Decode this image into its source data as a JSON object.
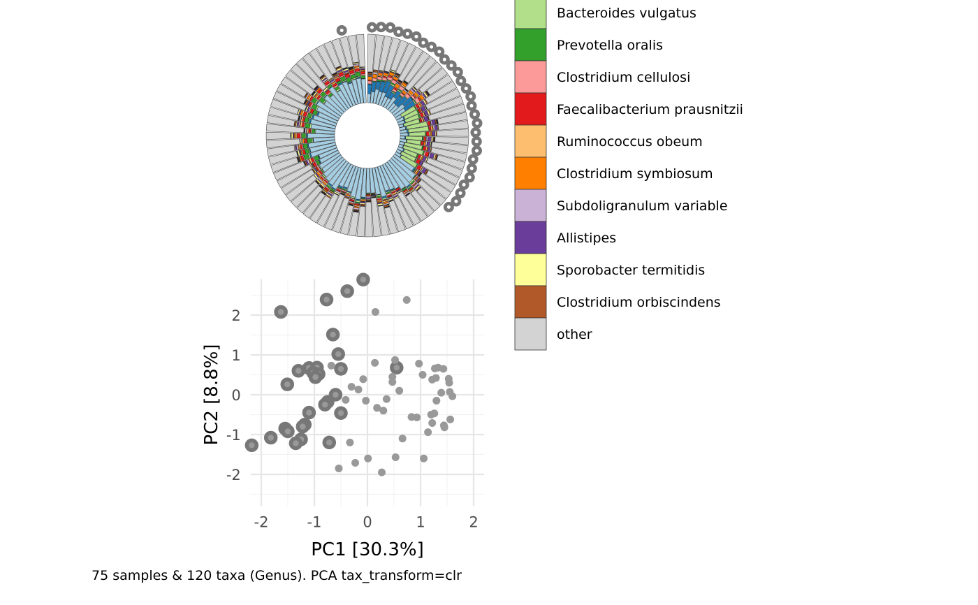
{
  "caption": "75 samples & 120 taxa (Genus). PCA tax_transform=clr",
  "legend": {
    "items": [
      {
        "label": "Bacteroides vulgatus",
        "color": "#b2df8a"
      },
      {
        "label": "Prevotella oralis",
        "color": "#33a02c"
      },
      {
        "label": "Clostridium cellulosi",
        "color": "#fb9a99"
      },
      {
        "label": "Faecalibacterium prausnitzii",
        "color": "#e31a1c"
      },
      {
        "label": "Ruminococcus obeum",
        "color": "#fdbf6f"
      },
      {
        "label": "Clostridium symbiosum",
        "color": "#ff7f00"
      },
      {
        "label": "Subdoligranulum variable",
        "color": "#cab2d6"
      },
      {
        "label": "Allistipes",
        "color": "#6a3d9a"
      },
      {
        "label": "Sporobacter termitidis",
        "color": "#ffff99"
      },
      {
        "label": "Clostridium orbiscindens",
        "color": "#b15928"
      },
      {
        "label": "other",
        "color": "#d3d3d3"
      }
    ],
    "hidden_colors": [
      "#1f78b4",
      "#a6cee3",
      "#222222"
    ]
  },
  "chart_data": [
    {
      "type": "scatter",
      "xlabel": "PC1 [30.3%]",
      "ylabel": "PC2 [8.8%]",
      "xlim": [
        -2.2,
        2.2
      ],
      "ylim": [
        -2.8,
        2.9
      ],
      "xticks": [
        -2,
        -1,
        0,
        1,
        2
      ],
      "yticks": [
        -2,
        -1,
        0,
        1,
        2
      ],
      "grid": true,
      "point_color": "#999999",
      "highlight_color": "#777777",
      "points": [
        {
          "x": -0.08,
          "y": 2.89,
          "h": true
        },
        {
          "x": -0.38,
          "y": 2.6,
          "h": true
        },
        {
          "x": -0.77,
          "y": 2.39,
          "h": true
        },
        {
          "x": -1.63,
          "y": 2.08,
          "h": true
        },
        {
          "x": -0.65,
          "y": 1.51,
          "h": true
        },
        {
          "x": -0.55,
          "y": 1.02,
          "h": true
        },
        {
          "x": -0.5,
          "y": 0.65,
          "h": true
        },
        {
          "x": -1.3,
          "y": 0.6,
          "h": true
        },
        {
          "x": -1.1,
          "y": 0.67,
          "h": true
        },
        {
          "x": -0.95,
          "y": 0.68,
          "h": true
        },
        {
          "x": -1.02,
          "y": 0.55,
          "h": true
        },
        {
          "x": -0.92,
          "y": 0.52,
          "h": true
        },
        {
          "x": -0.98,
          "y": 0.44,
          "h": true
        },
        {
          "x": -1.51,
          "y": 0.26,
          "h": true
        },
        {
          "x": -0.6,
          "y": 0.0,
          "h": true
        },
        {
          "x": -0.75,
          "y": -0.18,
          "h": true
        },
        {
          "x": -0.8,
          "y": -0.25,
          "h": true
        },
        {
          "x": -0.5,
          "y": -0.46,
          "h": true
        },
        {
          "x": -1.1,
          "y": -0.45,
          "h": true
        },
        {
          "x": -1.18,
          "y": -0.75,
          "h": true
        },
        {
          "x": -1.22,
          "y": -0.8,
          "h": true
        },
        {
          "x": -1.55,
          "y": -0.85,
          "h": true
        },
        {
          "x": -1.5,
          "y": -0.92,
          "h": true
        },
        {
          "x": -1.82,
          "y": -1.08,
          "h": true
        },
        {
          "x": -1.25,
          "y": -1.12,
          "h": true
        },
        {
          "x": -1.35,
          "y": -1.22,
          "h": true
        },
        {
          "x": -0.72,
          "y": -1.2,
          "h": true
        },
        {
          "x": -2.18,
          "y": -1.27,
          "h": true
        },
        {
          "x": 0.55,
          "y": 0.68,
          "h": true
        },
        {
          "x": 0.15,
          "y": 2.08
        },
        {
          "x": 0.74,
          "y": 2.38
        },
        {
          "x": 0.14,
          "y": 0.8
        },
        {
          "x": 0.52,
          "y": 0.87
        },
        {
          "x": 0.47,
          "y": 0.45
        },
        {
          "x": 0.47,
          "y": 0.32
        },
        {
          "x": -0.08,
          "y": 0.39
        },
        {
          "x": -0.17,
          "y": 0.13
        },
        {
          "x": -0.41,
          "y": -0.13
        },
        {
          "x": 0.36,
          "y": -0.11
        },
        {
          "x": 0.01,
          "y": -1.6
        },
        {
          "x": -0.23,
          "y": -1.71
        },
        {
          "x": -0.54,
          "y": -1.85
        },
        {
          "x": 0.27,
          "y": -1.95
        },
        {
          "x": 0.53,
          "y": -1.57
        },
        {
          "x": 1.06,
          "y": -1.6
        },
        {
          "x": 0.66,
          "y": -1.1
        },
        {
          "x": -0.33,
          "y": -1.2
        },
        {
          "x": -0.68,
          "y": 0.73
        },
        {
          "x": 0.97,
          "y": 0.78
        },
        {
          "x": 1.04,
          "y": 0.5
        },
        {
          "x": 1.22,
          "y": 0.38
        },
        {
          "x": 1.27,
          "y": 0.66
        },
        {
          "x": 1.33,
          "y": 0.68
        },
        {
          "x": 1.43,
          "y": 0.65
        },
        {
          "x": 1.29,
          "y": 0.42
        },
        {
          "x": 1.53,
          "y": 0.4
        },
        {
          "x": 1.54,
          "y": 0.3
        },
        {
          "x": 1.39,
          "y": 0.05
        },
        {
          "x": 1.55,
          "y": 0.07
        },
        {
          "x": 1.6,
          "y": -0.04
        },
        {
          "x": 1.3,
          "y": -0.15
        },
        {
          "x": 0.83,
          "y": -0.56
        },
        {
          "x": 0.93,
          "y": -0.57
        },
        {
          "x": 1.2,
          "y": -0.5
        },
        {
          "x": 1.26,
          "y": -0.47
        },
        {
          "x": 1.22,
          "y": -0.71
        },
        {
          "x": 1.44,
          "y": -0.77
        },
        {
          "x": 1.45,
          "y": -0.82
        },
        {
          "x": 1.56,
          "y": -0.62
        },
        {
          "x": 1.14,
          "y": -0.94
        },
        {
          "x": -0.03,
          "y": -0.15
        },
        {
          "x": 0.18,
          "y": -0.33
        },
        {
          "x": -0.3,
          "y": 0.2
        },
        {
          "x": 0.6,
          "y": 0.1
        },
        {
          "x": 0.3,
          "y": -0.4
        }
      ]
    },
    {
      "type": "bar",
      "layout": "circular",
      "sample_count": 75,
      "value_max": 1.0,
      "series_order": [
        "#a6cee3",
        "#1f78b4",
        "#b2df8a",
        "#33a02c",
        "#fb9a99",
        "#e31a1c",
        "#fdbf6f",
        "#ff7f00",
        "#cab2d6",
        "#6a3d9a",
        "#ffff99",
        "#b15928",
        "#222222"
      ],
      "other_color": "#d3d3d3",
      "highlight_color": "#777777"
    }
  ]
}
